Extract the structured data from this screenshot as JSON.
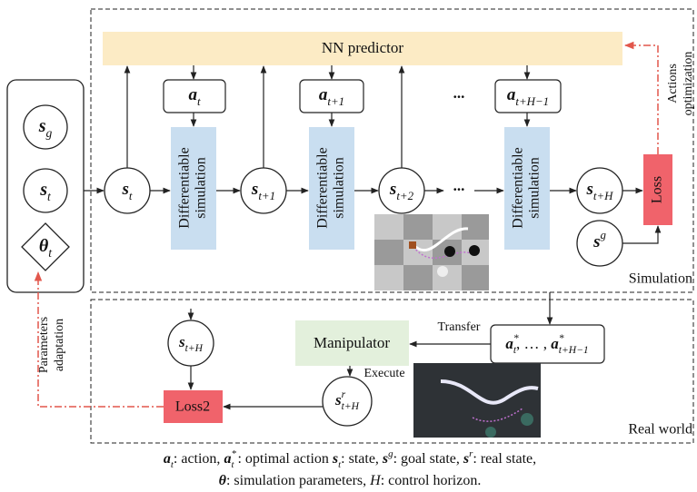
{
  "left_panel": {
    "nodes": [
      {
        "math": "s",
        "sub": "g"
      },
      {
        "math": "s",
        "sub": "t"
      },
      {
        "math": "θ",
        "sub": "t"
      }
    ]
  },
  "simulation": {
    "label": "Simulation",
    "nn_predictor": "NN predictor",
    "actions": [
      {
        "math": "a",
        "sub": "t"
      },
      {
        "math": "a",
        "sub": "t+1"
      },
      {
        "math": "a",
        "sub": "t+H−1"
      }
    ],
    "action_ellipsis": "...",
    "blocks": [
      [
        "Differentiable",
        "simulation"
      ],
      [
        "Differentiable",
        "simulation"
      ],
      [
        "Differentiable",
        "simulation"
      ]
    ],
    "states": [
      {
        "math": "s",
        "sub": "t"
      },
      {
        "math": "s",
        "sub": "t+1"
      },
      {
        "math": "s",
        "sub": "t+2"
      },
      {
        "math": "s",
        "sub": "t+H"
      }
    ],
    "state_ellipsis": "...",
    "goal": {
      "math": "s",
      "sup": "g"
    },
    "loss": "Loss",
    "feedback": [
      "Actions",
      "optimization"
    ]
  },
  "real_world": {
    "label": "Real world",
    "manipulator": "Manipulator",
    "transfer": "Transfer",
    "execute": "Execute",
    "optimal_actions": [
      {
        "math": "a",
        "sub": "t",
        "sup": "*"
      },
      {
        "text": ", … , "
      },
      {
        "math": "a",
        "sub": "t+H−1",
        "sup": "*"
      }
    ],
    "target_state": {
      "math": "s",
      "sub": "t+H"
    },
    "real_state": {
      "math": "s",
      "sub": "t+H",
      "sup": "r"
    },
    "loss2": "Loss2",
    "adaptation": [
      "Parameters",
      "adaptation"
    ]
  },
  "caption": {
    "lines": [
      [
        {
          "math": "a",
          "sub": "t"
        },
        {
          "text": ": action, "
        },
        {
          "math": "a",
          "sub": "t",
          "sup": "*"
        },
        {
          "text": " : optimal action "
        },
        {
          "math": "s",
          "sub": "t"
        },
        {
          "text": ": state, "
        },
        {
          "math": "s",
          "sup": "g"
        },
        {
          "text": ": goal state, "
        },
        {
          "math": "s",
          "sup": "r"
        },
        {
          "text": ": real state,"
        }
      ],
      [
        {
          "math": "θ"
        },
        {
          "text": ": simulation parameters, "
        },
        {
          "italic": "H"
        },
        {
          "text": ": control horizon."
        }
      ]
    ]
  }
}
